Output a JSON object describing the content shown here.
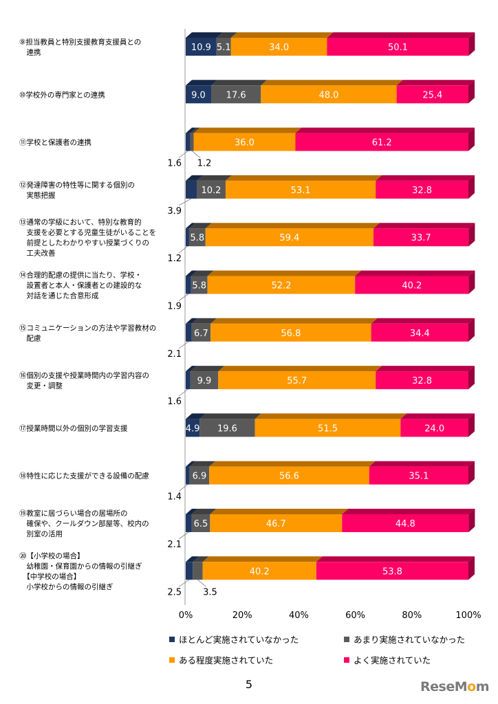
{
  "page_number": "5",
  "logo": {
    "part1": "ReseM",
    "part2": "o",
    "part3": "m",
    "sub": "リセマム"
  },
  "colors": {
    "hotondo": "#1f3864",
    "amari": "#595959",
    "aru": "#ff9900",
    "yoku": "#ff0066"
  },
  "chart_data": {
    "type": "bar",
    "orientation": "horizontal",
    "stacked": true,
    "percent_scale": true,
    "xlim": [
      0,
      100
    ],
    "x_ticks": [
      "0%",
      "20%",
      "40%",
      "60%",
      "80%",
      "100%"
    ],
    "legend_position": "bottom",
    "grid": false,
    "categories": [
      {
        "lines": [
          "⑨担当教員と特別支援教育支援員との",
          "　連携"
        ]
      },
      {
        "lines": [
          "⑩学校外の専門家との連携"
        ]
      },
      {
        "lines": [
          "⑪学校と保護者の連携"
        ]
      },
      {
        "lines": [
          "⑫発達障害の特性等に関する個別の",
          "　実態把握"
        ]
      },
      {
        "lines": [
          "⑬通常の学級において、特別な教育的",
          "　支援を必要とする児童生徒がいることを",
          "　前提としたわかりやすい授業づくりの",
          "　工夫改善"
        ]
      },
      {
        "lines": [
          "⑭合理的配慮の提供に当たり、学校・",
          "　設置者と本人・保護者との建設的な",
          "　対話を通じた合意形成"
        ]
      },
      {
        "lines": [
          "⑮コミュニケーションの方法や学習教材の",
          "　配慮"
        ]
      },
      {
        "lines": [
          "⑯個別の支援や授業時間内の学習内容の",
          "　変更・調整"
        ]
      },
      {
        "lines": [
          "⑰授業時間以外の個別の学習支援"
        ]
      },
      {
        "lines": [
          "⑱特性に応じた支援ができる設備の配慮"
        ]
      },
      {
        "lines": [
          "⑲教室に居づらい場合の居場所の",
          "　確保や、クールダウン部屋等、校内の",
          "　別室の活用"
        ]
      },
      {
        "lines": [
          "⑳【小学校の場合】",
          "　幼稚園・保育園からの情報の引継ぎ",
          "　【中学校の場合】",
          "　小学校からの情報の引継ぎ"
        ]
      }
    ],
    "series": [
      {
        "name": "ほとんど実施されていなかった",
        "color_key": "hotondo",
        "values": [
          10.9,
          9.0,
          1.6,
          3.9,
          1.2,
          1.9,
          2.1,
          1.6,
          4.9,
          1.4,
          2.1,
          2.5
        ],
        "labels": [
          "10.9",
          "9.0",
          "1.6",
          "3.9",
          "1.2",
          "1.9",
          "2.1",
          "1.6",
          "4.9",
          "1.4",
          "2.1",
          "2.5"
        ]
      },
      {
        "name": "あまり実施されていなかった",
        "color_key": "amari",
        "values": [
          5.1,
          17.6,
          1.2,
          10.2,
          5.8,
          5.8,
          6.7,
          9.9,
          19.6,
          6.9,
          6.5,
          3.5
        ],
        "labels": [
          "5.1",
          "17.6",
          "1.2",
          "10.2",
          "5.8",
          "5.8",
          "6.7",
          "9.9",
          "19.6",
          "6.9",
          "6.5",
          "3.5"
        ]
      },
      {
        "name": "ある程度実施されていた",
        "color_key": "aru",
        "values": [
          34.0,
          48.0,
          36.0,
          53.1,
          59.4,
          52.2,
          56.8,
          55.7,
          51.5,
          56.6,
          46.7,
          40.2
        ],
        "labels": [
          "34.0",
          "48.0",
          "36.0",
          "53.1",
          "59.4",
          "52.2",
          "56.8",
          "55.7",
          "51.5",
          "56.6",
          "46.7",
          "40.2"
        ]
      },
      {
        "name": "よく実施されていた",
        "color_key": "yoku",
        "values": [
          50.1,
          25.4,
          61.2,
          32.8,
          33.7,
          40.2,
          34.4,
          32.8,
          24.0,
          35.1,
          44.8,
          53.8
        ],
        "labels": [
          "50.1",
          "25.4",
          "61.2",
          "32.8",
          "33.7",
          "40.2",
          "34.4",
          "32.8",
          "24.0",
          "35.1",
          "44.8",
          "53.8"
        ]
      }
    ]
  }
}
